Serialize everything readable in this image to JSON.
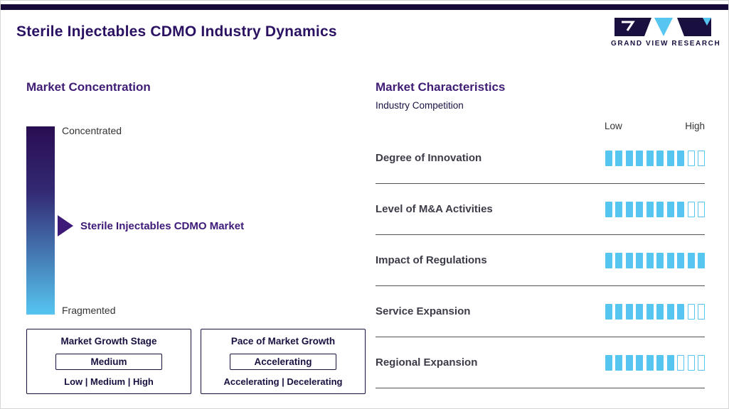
{
  "page": {
    "title": "Sterile Injectables CDMO Industry Dynamics",
    "logo_text": "GRAND VIEW RESEARCH"
  },
  "market_concentration": {
    "heading": "Market Concentration",
    "scale_top_label": "Concentrated",
    "scale_bottom_label": "Fragmented",
    "marker_label": "Sterile Injectables CDMO Market"
  },
  "growth_boxes": [
    {
      "title": "Market Growth Stage",
      "selected_value": "Medium",
      "options_text": "Low | Medium | High"
    },
    {
      "title": "Pace of Market Growth",
      "selected_value": "Accelerating",
      "options_text": "Accelerating | Decelerating"
    }
  ],
  "market_characteristics": {
    "heading": "Market Characteristics",
    "subheading": "Industry Competition",
    "scale_low_label": "Low",
    "scale_high_label": "High",
    "rows": [
      {
        "label": "Degree of Innovation",
        "filled": 8,
        "total": 10
      },
      {
        "label": "Level of M&A Activities",
        "filled": 8,
        "total": 10
      },
      {
        "label": "Impact of Regulations",
        "filled": 10,
        "total": 10
      },
      {
        "label": "Service Expansion",
        "filled": 8,
        "total": 10
      },
      {
        "label": "Regional Expansion",
        "filled": 7,
        "total": 10
      }
    ]
  },
  "chart_data": {
    "type": "bar",
    "title": "Market Characteristics — Industry Competition",
    "categories": [
      "Degree of Innovation",
      "Level of M&A Activities",
      "Impact of Regulations",
      "Service Expansion",
      "Regional Expansion"
    ],
    "values": [
      8,
      8,
      10,
      8,
      7
    ],
    "scale_max": 10,
    "scale_labels": [
      "Low",
      "High"
    ],
    "legend_position": "none",
    "companion_scale": {
      "name": "Market Concentration",
      "top": "Concentrated",
      "bottom": "Fragmented",
      "marker": "Sterile Injectables CDMO Market",
      "marker_position_from_top_pct": 53
    }
  },
  "colors": {
    "dark_navy": "#150a38",
    "title_purple": "#2b1161",
    "heading_purple": "#3f1d75",
    "accent_purple": "#3d1a78",
    "cyan": "#56c5f0",
    "box_navy": "#1a1040"
  }
}
